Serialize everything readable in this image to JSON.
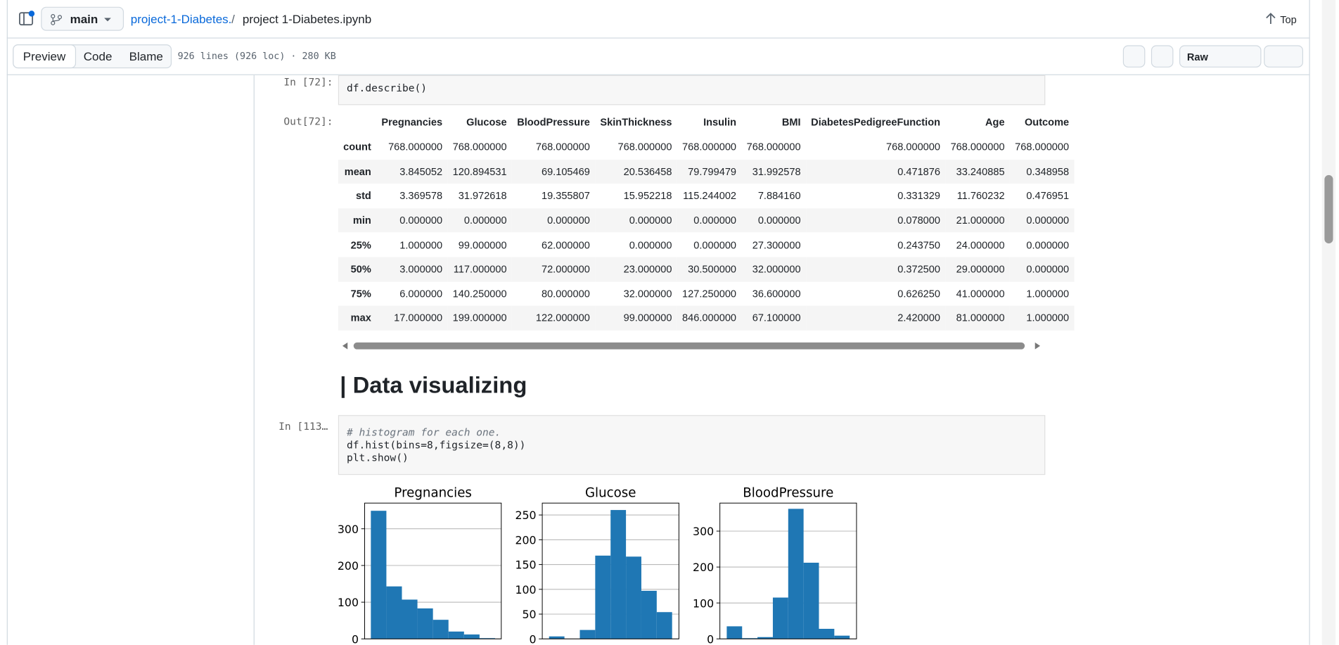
{
  "header": {
    "branch": "main",
    "repo": "project-1-Diabetes.",
    "separator": "/",
    "file": "project 1-Diabetes.ipynb",
    "top": "Top"
  },
  "toolbar": {
    "tabs": [
      "Preview",
      "Code",
      "Blame"
    ],
    "info": "926 lines (926 loc) · 280 KB",
    "raw": "Raw"
  },
  "cell1": {
    "prompt": "In [72]:",
    "code": "df.describe()"
  },
  "output1": {
    "prompt": "Out[72]:",
    "table": {
      "columns": [
        "Pregnancies",
        "Glucose",
        "BloodPressure",
        "SkinThickness",
        "Insulin",
        "BMI",
        "DiabetesPedigreeFunction",
        "Age",
        "Outcome"
      ],
      "rows": [
        {
          "label": "count",
          "values": [
            "768.000000",
            "768.000000",
            "768.000000",
            "768.000000",
            "768.000000",
            "768.000000",
            "768.000000",
            "768.000000",
            "768.000000"
          ]
        },
        {
          "label": "mean",
          "values": [
            "3.845052",
            "120.894531",
            "69.105469",
            "20.536458",
            "79.799479",
            "31.992578",
            "0.471876",
            "33.240885",
            "0.348958"
          ]
        },
        {
          "label": "std",
          "values": [
            "3.369578",
            "31.972618",
            "19.355807",
            "15.952218",
            "115.244002",
            "7.884160",
            "0.331329",
            "11.760232",
            "0.476951"
          ]
        },
        {
          "label": "min",
          "values": [
            "0.000000",
            "0.000000",
            "0.000000",
            "0.000000",
            "0.000000",
            "0.000000",
            "0.078000",
            "21.000000",
            "0.000000"
          ]
        },
        {
          "label": "25%",
          "values": [
            "1.000000",
            "99.000000",
            "62.000000",
            "0.000000",
            "0.000000",
            "27.300000",
            "0.243750",
            "24.000000",
            "0.000000"
          ]
        },
        {
          "label": "50%",
          "values": [
            "3.000000",
            "117.000000",
            "72.000000",
            "23.000000",
            "30.500000",
            "32.000000",
            "0.372500",
            "29.000000",
            "0.000000"
          ]
        },
        {
          "label": "75%",
          "values": [
            "6.000000",
            "140.250000",
            "80.000000",
            "32.000000",
            "127.250000",
            "36.600000",
            "0.626250",
            "41.000000",
            "1.000000"
          ]
        },
        {
          "label": "max",
          "values": [
            "17.000000",
            "199.000000",
            "122.000000",
            "99.000000",
            "846.000000",
            "67.100000",
            "2.420000",
            "81.000000",
            "1.000000"
          ]
        }
      ]
    }
  },
  "heading": "| Data visualizing",
  "cell2": {
    "prompt": "In [113…",
    "code_lines": [
      "# histogram for each one.",
      "df.hist(bins=8,figsize=(8,8))",
      "plt.show()"
    ]
  },
  "chart_data": [
    {
      "type": "histogram",
      "title": "Pregnancies",
      "color": "#1f77b4",
      "grid": true,
      "bins": [
        0,
        2.125,
        4.25,
        6.375,
        8.5,
        10.625,
        12.75,
        14.875,
        17
      ],
      "values": [
        349,
        143,
        107,
        83,
        52,
        20,
        12,
        2
      ],
      "xlim": [
        -0.85,
        17.85
      ],
      "ylim": [
        0,
        370
      ],
      "yticks": [
        0,
        100,
        200,
        300
      ]
    },
    {
      "type": "histogram",
      "title": "Glucose",
      "color": "#1f77b4",
      "grid": true,
      "bins": [
        0,
        24.875,
        49.75,
        74.625,
        99.5,
        124.375,
        149.25,
        174.125,
        199
      ],
      "values": [
        5,
        0,
        18,
        168,
        260,
        166,
        97,
        54
      ],
      "xlim": [
        -11,
        210
      ],
      "ylim": [
        0,
        274
      ],
      "yticks": [
        0,
        50,
        100,
        150,
        200,
        250
      ]
    },
    {
      "type": "histogram",
      "title": "BloodPressure",
      "color": "#1f77b4",
      "grid": true,
      "bins": [
        0,
        15.25,
        30.5,
        45.75,
        61,
        76.25,
        91.5,
        106.75,
        122
      ],
      "values": [
        35,
        2,
        5,
        115,
        362,
        212,
        28,
        9
      ],
      "xlim": [
        -6.8,
        128.8
      ],
      "ylim": [
        0,
        378
      ],
      "yticks": [
        0,
        100,
        200,
        300
      ]
    }
  ]
}
